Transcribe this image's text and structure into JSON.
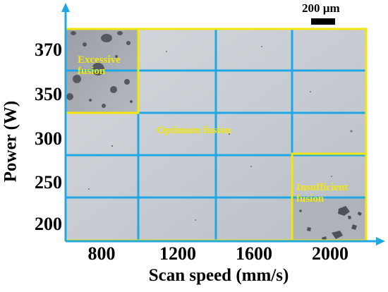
{
  "axes": {
    "x_title": "Scan speed (mm/s)",
    "y_title": "Power (W)",
    "x_ticks": [
      "800",
      "1200",
      "1600",
      "2000"
    ],
    "y_ticks": [
      "370",
      "350",
      "300",
      "250",
      "200"
    ]
  },
  "regions": {
    "excessive": "Excessive fusion",
    "optimum": "Optimum fusion",
    "insufficient": "Insufficient fusion"
  },
  "scale_bar": "200 µm",
  "colors": {
    "grid": "#1fa7e6",
    "region_border": "#f2e60a",
    "region_text": "#f2e60a",
    "axis": "#1fa7e6",
    "tile": "#c9ced4"
  }
}
